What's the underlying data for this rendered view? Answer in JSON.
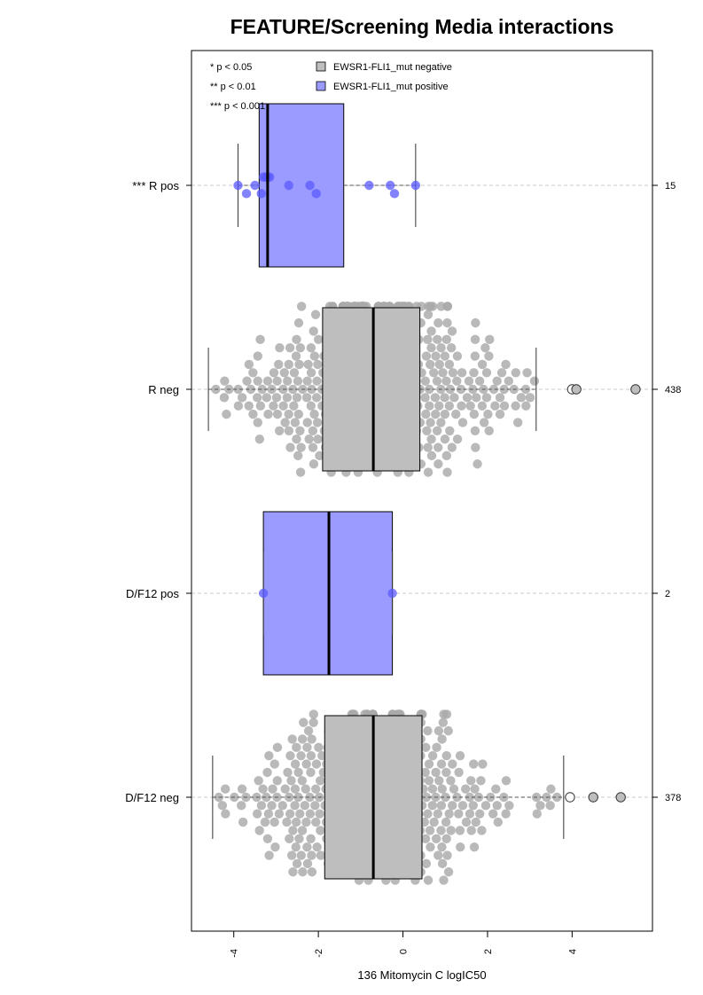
{
  "chart_data": {
    "type": "box",
    "orientation": "horizontal",
    "title": "FEATURE/Screening Media interactions",
    "xlabel": "136 Mitomycin C logIC50",
    "xlim": [
      -5.0,
      5.9
    ],
    "xticks": [
      -4,
      -2,
      0,
      2,
      4
    ],
    "xtick_labels": [
      "-4",
      "-2",
      "0",
      "2",
      "4"
    ],
    "grid": "dashed horizontal guide line per group",
    "significance_legend": [
      "* p < 0.05",
      "** p < 0.01",
      "*** p < 0.001"
    ],
    "legend": [
      {
        "label": "EWSR1-FLI1_mut negative",
        "color": "#bebebe"
      },
      {
        "label": "EWSR1-FLI1_mut positive",
        "color": "#9a9aff"
      }
    ],
    "groups": [
      {
        "label": "*** R pos",
        "n": "15",
        "status": "positive",
        "box": {
          "q1": -3.4,
          "median": -3.2,
          "q3": -1.4
        },
        "whisker": [
          -3.9,
          0.3
        ],
        "outliers": [],
        "points": [
          -3.9,
          -3.7,
          -3.5,
          -3.35,
          -3.3,
          -3.25,
          -3.2,
          -3.15,
          -2.7,
          -2.2,
          -2.05,
          -0.8,
          -0.3,
          -0.2,
          0.3
        ]
      },
      {
        "label": "R neg",
        "n": "438",
        "status": "negative",
        "box": {
          "q1": -1.9,
          "median": -0.7,
          "q3": 0.4
        },
        "whisker": [
          -4.6,
          3.15
        ],
        "outliers": [
          4.0,
          4.1,
          5.5
        ],
        "points_range": [
          -4.6,
          3.15
        ],
        "points_count": 438
      },
      {
        "label": "D/F12 pos",
        "n": "2",
        "status": "positive",
        "box": {
          "q1": -3.3,
          "median": -1.75,
          "q3": -0.25
        },
        "whisker": [
          -3.3,
          -0.25
        ],
        "outliers": [],
        "points": [
          -3.3,
          -0.25
        ]
      },
      {
        "label": "D/F12 neg",
        "n": "378",
        "status": "negative",
        "box": {
          "q1": -1.85,
          "median": -0.7,
          "q3": 0.45
        },
        "whisker": [
          -4.5,
          3.8
        ],
        "outliers": [
          3.95,
          4.5,
          5.15
        ],
        "points_range": [
          -4.5,
          3.8
        ],
        "points_count": 378
      }
    ]
  },
  "colors": {
    "negative_fill": "#bebebe",
    "positive_fill": "#9a9aff",
    "negative_point": "#a9a9a9",
    "positive_point": "#5a5aff",
    "guide": "#c8c8c8"
  }
}
